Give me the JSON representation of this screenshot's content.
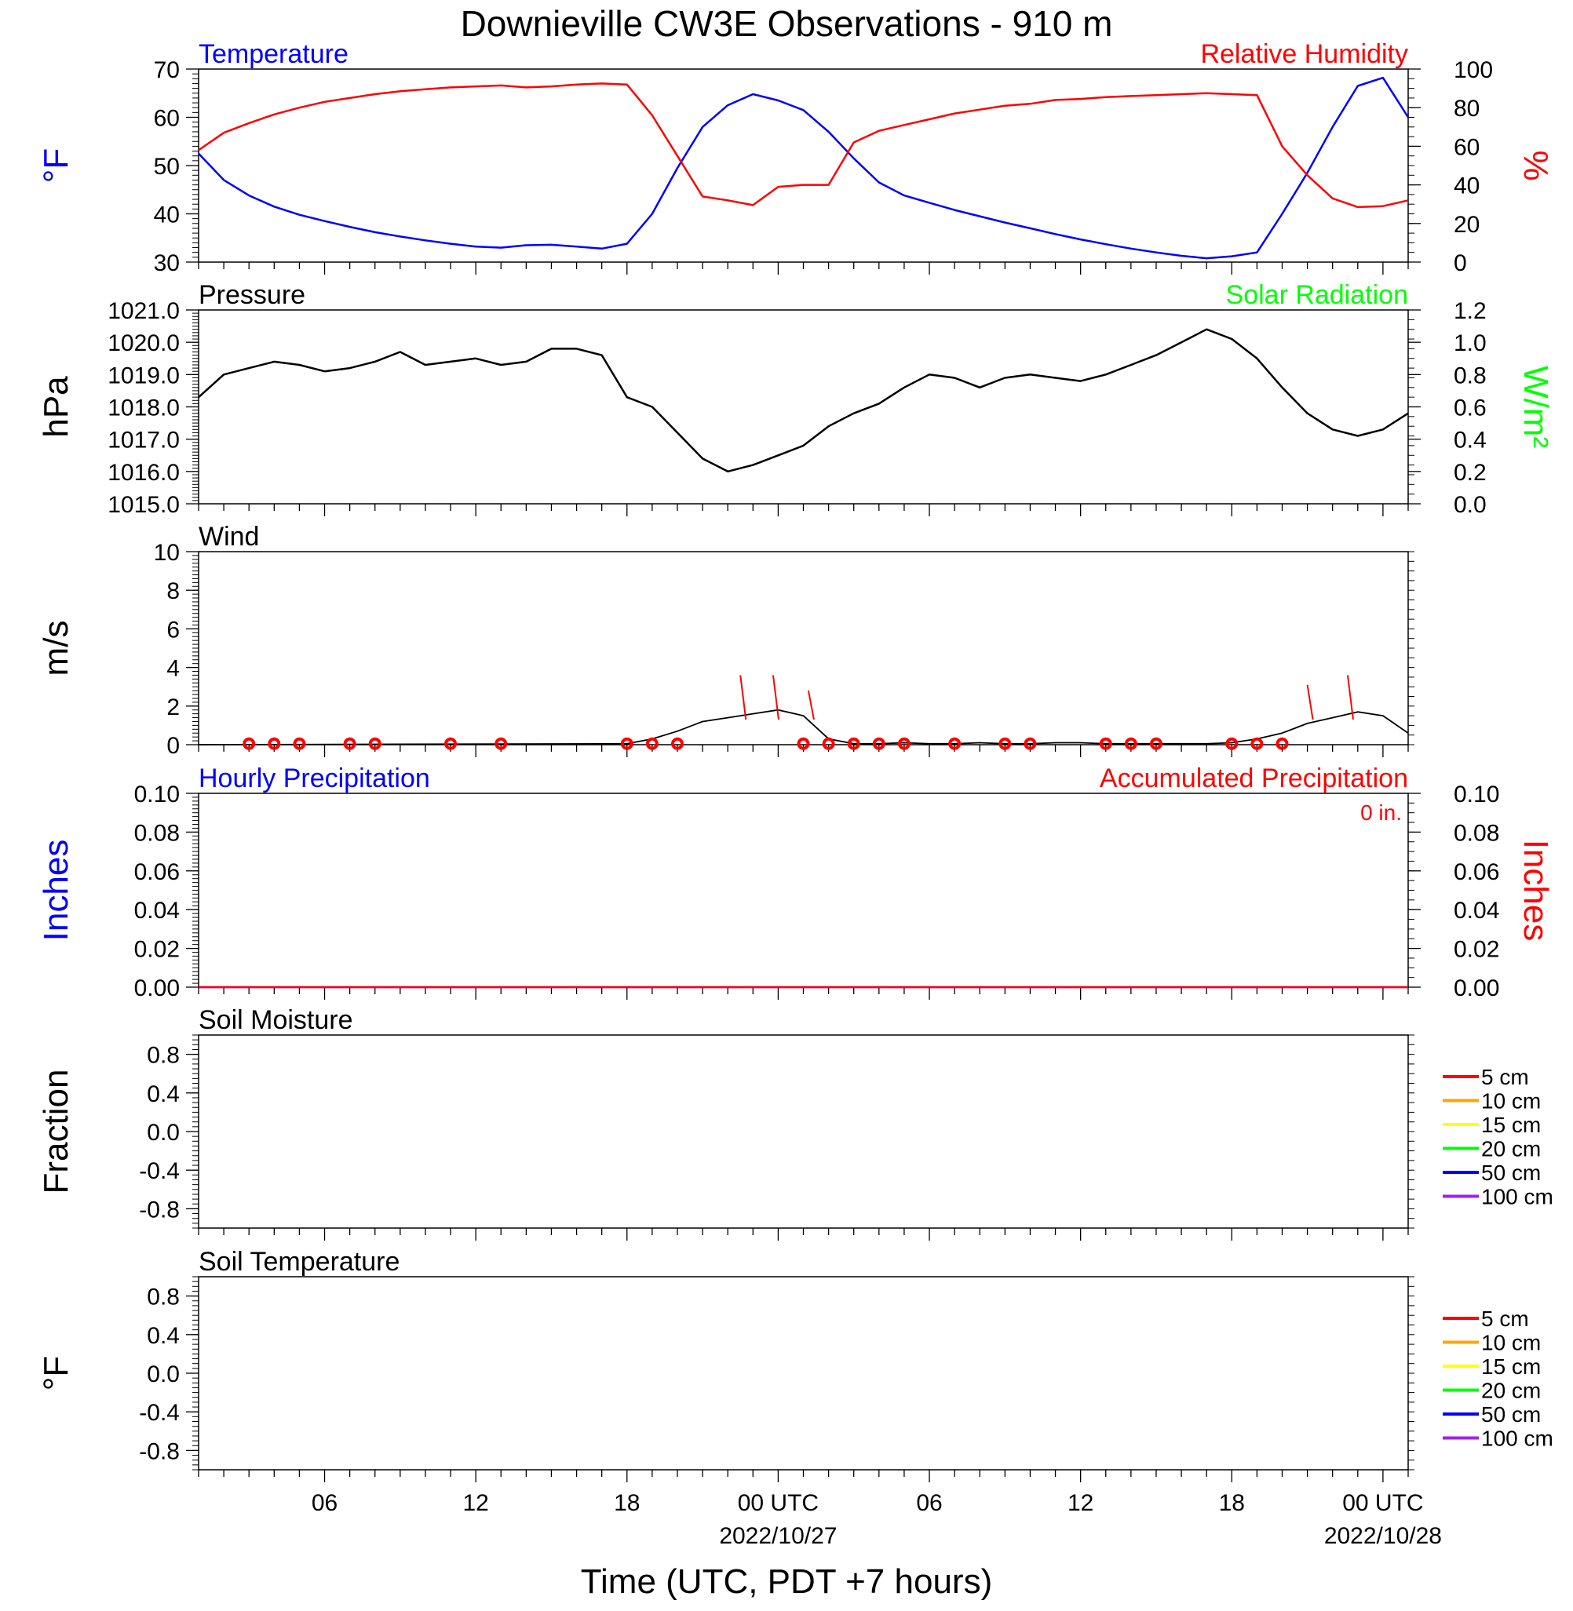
{
  "title": "Downieville CW3E Observations - 910 m",
  "xlabel": "Time (UTC, PDT +7 hours)",
  "x_ticks": [
    "06",
    "12",
    "18",
    "00 UTC",
    "06",
    "12",
    "18",
    "00 UTC"
  ],
  "x_dates": [
    "2022/10/27",
    "2022/10/28"
  ],
  "colors": {
    "blue": "#0000ff",
    "red": "#ff0000",
    "green": "#00ff00",
    "black": "#000000"
  },
  "panels": {
    "temp": {
      "left_title": "Temperature",
      "right_title": "Relative Humidity",
      "ylabel_left": "°F",
      "ylabel_right": "%",
      "left_ticks": [
        "30",
        "40",
        "50",
        "60",
        "70"
      ],
      "right_ticks": [
        "0",
        "20",
        "40",
        "60",
        "80",
        "100"
      ]
    },
    "pres": {
      "left_title": "Pressure",
      "right_title": "Solar Radiation",
      "ylabel_left": "hPa",
      "ylabel_right": "W/m²",
      "left_ticks": [
        "1015.0",
        "1016.0",
        "1017.0",
        "1018.0",
        "1019.0",
        "1020.0",
        "1021.0"
      ],
      "right_ticks": [
        "0.0",
        "0.2",
        "0.4",
        "0.6",
        "0.8",
        "1.0",
        "1.2"
      ]
    },
    "wind": {
      "left_title": "Wind",
      "ylabel_left": "m/s",
      "left_ticks": [
        "0",
        "2",
        "4",
        "6",
        "8",
        "10"
      ]
    },
    "precip": {
      "left_title": "Hourly Precipitation",
      "right_title": "Accumulated Precipitation",
      "total_label": "0 in.",
      "ylabel_left": "Inches",
      "ylabel_right": "Inches",
      "left_ticks": [
        "0.00",
        "0.02",
        "0.04",
        "0.06",
        "0.08",
        "0.10"
      ],
      "right_ticks": [
        "0.00",
        "0.02",
        "0.04",
        "0.06",
        "0.08",
        "0.10"
      ]
    },
    "soilm": {
      "left_title": "Soil Moisture",
      "ylabel_left": "Fraction",
      "left_ticks": [
        "-0.8",
        "-0.4",
        "0.0",
        "0.4",
        "0.8"
      ]
    },
    "soilt": {
      "left_title": "Soil Temperature",
      "ylabel_left": "°F",
      "left_ticks": [
        "-0.8",
        "-0.4",
        "0.0",
        "0.4",
        "0.8"
      ]
    }
  },
  "soil_legend": [
    {
      "label": "5 cm",
      "color": "#ff0000"
    },
    {
      "label": "10 cm",
      "color": "#ffa500"
    },
    {
      "label": "15 cm",
      "color": "#ffff00"
    },
    {
      "label": "20 cm",
      "color": "#00ff00"
    },
    {
      "label": "50 cm",
      "color": "#0000ff"
    },
    {
      "label": "100 cm",
      "color": "#a020f0"
    }
  ],
  "chart_data": [
    {
      "type": "line",
      "title": "Temperature",
      "ylabel": "°F",
      "ylim": [
        30,
        70
      ],
      "x_unit": "hours since 2022-10-26 01 UTC",
      "series": [
        {
          "name": "Temperature",
          "color": "#0000ff",
          "x": [
            0,
            1,
            2,
            3,
            4,
            5,
            6,
            7,
            8,
            9,
            10,
            11,
            12,
            13,
            14,
            15,
            16,
            17,
            18,
            19,
            20,
            21,
            22,
            23,
            24,
            25,
            26,
            27,
            28,
            29,
            30,
            31,
            32,
            33,
            34,
            35,
            36,
            37,
            38,
            39,
            40,
            41,
            42,
            43,
            44,
            45,
            46,
            47,
            48
          ],
          "values": [
            52.5,
            47,
            43.8,
            41.5,
            39.8,
            38.5,
            37.3,
            36.2,
            35.3,
            34.5,
            33.8,
            33.2,
            33.0,
            33.5,
            33.6,
            33.2,
            32.8,
            33.8,
            40,
            49.5,
            58,
            62.5,
            64.8,
            63.5,
            61.5,
            57,
            51.5,
            46.5,
            43.8,
            42.3,
            40.8,
            39.5,
            38.2,
            37,
            35.8,
            34.7,
            33.7,
            32.8,
            32.0,
            31.3,
            30.8,
            31.2,
            32,
            40,
            48.5,
            58,
            66.5,
            68.2,
            60
          ]
        }
      ]
    },
    {
      "type": "line",
      "title": "Relative Humidity",
      "ylabel": "%",
      "ylim": [
        0,
        100
      ],
      "series": [
        {
          "name": "Relative Humidity",
          "color": "#ff0000",
          "x": [
            0,
            1,
            2,
            3,
            4,
            5,
            6,
            7,
            8,
            9,
            10,
            11,
            12,
            13,
            14,
            15,
            16,
            17,
            18,
            19,
            20,
            21,
            22,
            23,
            24,
            25,
            26,
            27,
            28,
            29,
            30,
            31,
            32,
            33,
            34,
            35,
            36,
            37,
            38,
            39,
            40,
            41,
            42,
            43,
            44,
            45,
            46,
            47,
            48
          ],
          "values": [
            58,
            67,
            72,
            76.5,
            80,
            83,
            85,
            87,
            88.5,
            89.5,
            90.5,
            91,
            91.5,
            90.5,
            91,
            92,
            92.5,
            92,
            76,
            55,
            34,
            32,
            29.5,
            39,
            40,
            40,
            62,
            68,
            71,
            74,
            77,
            79,
            81,
            82,
            84,
            84.5,
            85.5,
            86,
            86.5,
            87,
            87.5,
            87,
            86.5,
            60,
            45,
            33,
            28.5,
            29,
            32
          ]
        }
      ]
    },
    {
      "type": "line",
      "title": "Pressure",
      "ylabel": "hPa",
      "ylim": [
        1015,
        1021
      ],
      "series": [
        {
          "name": "Pressure",
          "color": "#000000",
          "x": [
            0,
            1,
            2,
            3,
            4,
            5,
            6,
            7,
            8,
            9,
            10,
            11,
            12,
            13,
            14,
            15,
            16,
            17,
            18,
            19,
            20,
            21,
            22,
            23,
            24,
            25,
            26,
            27,
            28,
            29,
            30,
            31,
            32,
            33,
            34,
            35,
            36,
            37,
            38,
            39,
            40,
            41,
            42,
            43,
            44,
            45,
            46,
            47,
            48
          ],
          "values": [
            1018.3,
            1019.0,
            1019.2,
            1019.4,
            1019.3,
            1019.1,
            1019.2,
            1019.4,
            1019.7,
            1019.3,
            1019.4,
            1019.5,
            1019.3,
            1019.4,
            1019.8,
            1019.8,
            1019.6,
            1018.3,
            1018.0,
            1017.2,
            1016.4,
            1016.0,
            1016.2,
            1016.5,
            1016.8,
            1017.4,
            1017.8,
            1018.1,
            1018.6,
            1019.0,
            1018.9,
            1018.6,
            1018.9,
            1019.0,
            1018.9,
            1018.8,
            1019.0,
            1019.3,
            1019.6,
            1020.0,
            1020.4,
            1020.1,
            1019.5,
            1018.6,
            1017.8,
            1017.3,
            1017.1,
            1017.3,
            1017.8
          ]
        }
      ]
    },
    {
      "type": "line",
      "title": "Wind",
      "ylabel": "m/s",
      "ylim": [
        0,
        10
      ],
      "series": [
        {
          "name": "Wind",
          "color": "#000000",
          "x": [
            0,
            17,
            18,
            19,
            20,
            21,
            22,
            23,
            24,
            25,
            26,
            27,
            28,
            29,
            30,
            31,
            32,
            33,
            34,
            35,
            36,
            37,
            38,
            39,
            40,
            41,
            42,
            43,
            44,
            45,
            46,
            47,
            48
          ],
          "values": [
            0,
            0.05,
            0.3,
            0.7,
            1.2,
            1.4,
            1.6,
            1.8,
            1.5,
            0.3,
            0.05,
            0.05,
            0.1,
            0.05,
            0.05,
            0.1,
            0.05,
            0.05,
            0.1,
            0.1,
            0.05,
            0.05,
            0.05,
            0.05,
            0.05,
            0.1,
            0.3,
            0.6,
            1.1,
            1.4,
            1.7,
            1.5,
            0.6
          ]
        },
        {
          "name": "Gust",
          "color": "#ff0000",
          "x": [
            21.5,
            22.8,
            24.2,
            44,
            45.6
          ],
          "values": [
            3.6,
            3.6,
            2.8,
            3.1,
            3.6
          ]
        }
      ]
    },
    {
      "type": "line",
      "title": "Hourly Precipitation",
      "ylabel": "Inches",
      "ylim": [
        0,
        0.1
      ],
      "series": [
        {
          "name": "Hourly Precipitation",
          "color": "#0000ff",
          "x": [
            0,
            48
          ],
          "values": [
            0,
            0
          ]
        }
      ]
    },
    {
      "type": "line",
      "title": "Accumulated Precipitation",
      "ylabel": "Inches",
      "ylim": [
        0,
        0.1
      ],
      "series": [
        {
          "name": "Accumulated Precipitation",
          "color": "#ff0000",
          "x": [
            0,
            48
          ],
          "values": [
            0,
            0
          ]
        }
      ]
    },
    {
      "type": "line",
      "title": "Soil Moisture",
      "ylabel": "Fraction",
      "ylim": [
        -1,
        1
      ],
      "series": []
    },
    {
      "type": "line",
      "title": "Soil Temperature",
      "ylabel": "°F",
      "ylim": [
        -1,
        1
      ],
      "series": []
    }
  ]
}
